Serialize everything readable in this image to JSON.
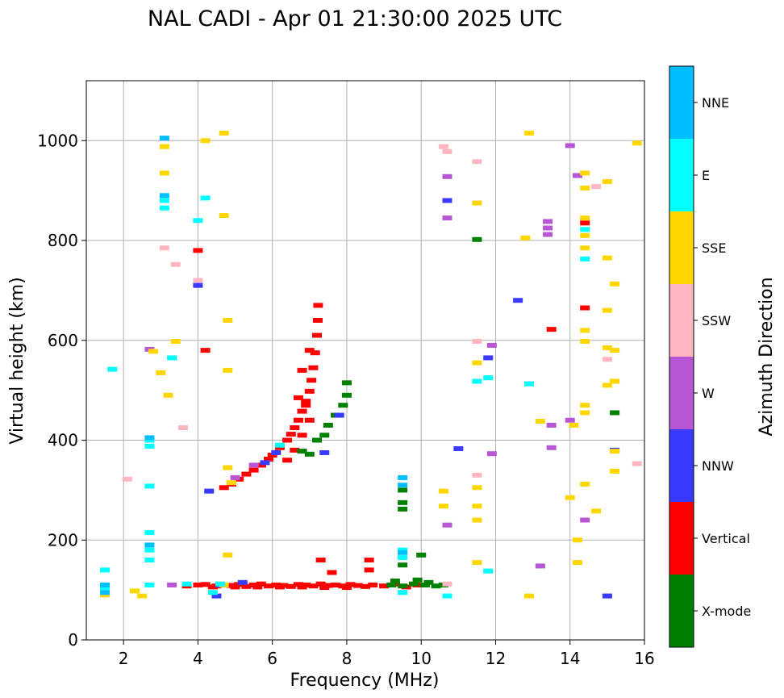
{
  "chart_data": {
    "type": "scatter",
    "title": "NAL CADI - Apr 01 21:30:00 2025 UTC",
    "xlabel": "Frequency (MHz)",
    "ylabel": "Virtual height (km)",
    "xlim": [
      1,
      16
    ],
    "ylim": [
      0,
      1120
    ],
    "xticks": [
      2,
      4,
      6,
      8,
      10,
      12,
      14,
      16
    ],
    "yticks": [
      0,
      200,
      400,
      600,
      800,
      1000
    ],
    "grid": true,
    "colorbar": {
      "label": "Azimuth Direction",
      "categories": [
        {
          "name": "X-mode",
          "color": "#008000"
        },
        {
          "name": "Vertical",
          "color": "#ff0000"
        },
        {
          "name": "NNW",
          "color": "#3a3aff"
        },
        {
          "name": "W",
          "color": "#b757d6"
        },
        {
          "name": "SSW",
          "color": "#ffb6c1"
        },
        {
          "name": "SSE",
          "color": "#ffd700"
        },
        {
          "name": "E",
          "color": "#00ffff"
        },
        {
          "name": "NNE",
          "color": "#00bfff"
        }
      ]
    },
    "series": [
      {
        "name": "Vertical",
        "points": [
          [
            4.5,
            108
          ],
          [
            4.7,
            110
          ],
          [
            4.9,
            109
          ],
          [
            5.1,
            111
          ],
          [
            5.3,
            107
          ],
          [
            5.5,
            110
          ],
          [
            5.7,
            112
          ],
          [
            5.9,
            108
          ],
          [
            6.1,
            110
          ],
          [
            6.3,
            109
          ],
          [
            6.5,
            107
          ],
          [
            6.7,
            111
          ],
          [
            6.9,
            110
          ],
          [
            7.1,
            108
          ],
          [
            7.3,
            112
          ],
          [
            7.5,
            109
          ],
          [
            7.7,
            110
          ],
          [
            7.9,
            108
          ],
          [
            8.1,
            111
          ],
          [
            8.3,
            109
          ],
          [
            8.5,
            107
          ],
          [
            8.7,
            110
          ],
          [
            9.0,
            108
          ],
          [
            9.3,
            112
          ],
          [
            9.6,
            106
          ],
          [
            9.9,
            110
          ],
          [
            3.7,
            108
          ],
          [
            4.0,
            110
          ],
          [
            4.2,
            111
          ],
          [
            4.4,
            106
          ],
          [
            5.0,
            106
          ],
          [
            5.6,
            106
          ],
          [
            6.2,
            106
          ],
          [
            6.8,
            106
          ],
          [
            7.4,
            105
          ],
          [
            8.0,
            105
          ],
          [
            7.6,
            135
          ],
          [
            8.6,
            140
          ],
          [
            8.6,
            160
          ],
          [
            7.3,
            160
          ],
          [
            4.7,
            305
          ],
          [
            4.9,
            312
          ],
          [
            5.1,
            322
          ],
          [
            5.3,
            332
          ],
          [
            5.5,
            340
          ],
          [
            5.7,
            350
          ],
          [
            5.9,
            362
          ],
          [
            6.0,
            370
          ],
          [
            6.2,
            385
          ],
          [
            6.4,
            400
          ],
          [
            6.5,
            412
          ],
          [
            6.6,
            425
          ],
          [
            6.7,
            440
          ],
          [
            6.8,
            458
          ],
          [
            6.9,
            478
          ],
          [
            7.0,
            498
          ],
          [
            7.05,
            520
          ],
          [
            7.1,
            545
          ],
          [
            7.15,
            575
          ],
          [
            7.2,
            610
          ],
          [
            7.22,
            640
          ],
          [
            7.23,
            670
          ],
          [
            6.4,
            360
          ],
          [
            6.6,
            380
          ],
          [
            6.8,
            410
          ],
          [
            7.0,
            440
          ],
          [
            6.9,
            470
          ],
          [
            6.7,
            485
          ],
          [
            6.8,
            540
          ],
          [
            7.0,
            580
          ],
          [
            4.2,
            580
          ],
          [
            4.0,
            780
          ],
          [
            13.5,
            622
          ],
          [
            14.4,
            665
          ],
          [
            14.4,
            835
          ]
        ]
      },
      {
        "name": "X-mode",
        "points": [
          [
            9.2,
            110
          ],
          [
            9.5,
            108
          ],
          [
            9.8,
            112
          ],
          [
            10.1,
            110
          ],
          [
            10.4,
            108
          ],
          [
            10.6,
            110
          ],
          [
            9.3,
            118
          ],
          [
            9.9,
            120
          ],
          [
            10.2,
            115
          ],
          [
            6.8,
            378
          ],
          [
            7.0,
            372
          ],
          [
            7.2,
            400
          ],
          [
            7.4,
            410
          ],
          [
            7.5,
            430
          ],
          [
            7.7,
            450
          ],
          [
            7.9,
            470
          ],
          [
            8.0,
            490
          ],
          [
            8.0,
            515
          ],
          [
            9.5,
            262
          ],
          [
            9.5,
            275
          ],
          [
            9.5,
            300
          ],
          [
            9.5,
            150
          ],
          [
            10.0,
            170
          ],
          [
            11.5,
            802
          ],
          [
            15.2,
            455
          ]
        ]
      },
      {
        "name": "NNW",
        "points": [
          [
            4.3,
            298
          ],
          [
            4.6,
            110
          ],
          [
            5.2,
            115
          ],
          [
            5.8,
            355
          ],
          [
            6.1,
            375
          ],
          [
            7.4,
            375
          ],
          [
            7.8,
            450
          ],
          [
            4.0,
            710
          ],
          [
            10.7,
            880
          ],
          [
            11.0,
            383
          ],
          [
            11.8,
            565
          ],
          [
            12.6,
            680
          ],
          [
            15.2,
            380
          ],
          [
            15.0,
            88
          ],
          [
            4.5,
            88
          ]
        ]
      },
      {
        "name": "W",
        "points": [
          [
            2.7,
            582
          ],
          [
            3.3,
            110
          ],
          [
            5.0,
            325
          ],
          [
            5.5,
            350
          ],
          [
            10.7,
            230
          ],
          [
            10.7,
            845
          ],
          [
            10.7,
            928
          ],
          [
            13.4,
            838
          ],
          [
            13.4,
            825
          ],
          [
            13.4,
            812
          ],
          [
            13.5,
            430
          ],
          [
            13.5,
            385
          ],
          [
            11.9,
            373
          ],
          [
            14.0,
            990
          ],
          [
            14.2,
            930
          ],
          [
            14.4,
            240
          ],
          [
            13.2,
            148
          ],
          [
            14.0,
            440
          ],
          [
            11.9,
            590
          ]
        ]
      },
      {
        "name": "SSW",
        "points": [
          [
            2.1,
            322
          ],
          [
            3.6,
            425
          ],
          [
            3.1,
            785
          ],
          [
            3.4,
            752
          ],
          [
            4.0,
            720
          ],
          [
            10.6,
            988
          ],
          [
            10.7,
            978
          ],
          [
            11.5,
            958
          ],
          [
            11.5,
            598
          ],
          [
            11.5,
            330
          ],
          [
            14.7,
            908
          ],
          [
            15.0,
            562
          ],
          [
            15.8,
            353
          ],
          [
            10.7,
            112
          ]
        ]
      },
      {
        "name": "SSE",
        "points": [
          [
            1.5,
            90
          ],
          [
            2.3,
            98
          ],
          [
            2.5,
            88
          ],
          [
            2.8,
            578
          ],
          [
            3.0,
            535
          ],
          [
            3.2,
            490
          ],
          [
            3.4,
            598
          ],
          [
            3.1,
            988
          ],
          [
            3.1,
            935
          ],
          [
            4.2,
            1000
          ],
          [
            4.7,
            1015
          ],
          [
            4.7,
            850
          ],
          [
            4.8,
            640
          ],
          [
            4.8,
            540
          ],
          [
            4.8,
            345
          ],
          [
            4.8,
            170
          ],
          [
            4.7,
            110
          ],
          [
            4.9,
            315
          ],
          [
            10.6,
            298
          ],
          [
            10.6,
            268
          ],
          [
            11.5,
            875
          ],
          [
            11.5,
            555
          ],
          [
            11.5,
            518
          ],
          [
            11.5,
            305
          ],
          [
            11.5,
            268
          ],
          [
            11.5,
            240
          ],
          [
            11.5,
            155
          ],
          [
            12.8,
            805
          ],
          [
            12.9,
            1015
          ],
          [
            12.9,
            88
          ],
          [
            13.2,
            438
          ],
          [
            14.0,
            285
          ],
          [
            14.1,
            430
          ],
          [
            14.2,
            200
          ],
          [
            14.2,
            155
          ],
          [
            14.4,
            935
          ],
          [
            14.4,
            905
          ],
          [
            14.4,
            845
          ],
          [
            14.4,
            810
          ],
          [
            14.4,
            785
          ],
          [
            14.4,
            598
          ],
          [
            14.4,
            620
          ],
          [
            14.4,
            470
          ],
          [
            14.4,
            455
          ],
          [
            14.4,
            312
          ],
          [
            14.7,
            258
          ],
          [
            15.0,
            918
          ],
          [
            15.0,
            765
          ],
          [
            15.0,
            660
          ],
          [
            15.0,
            585
          ],
          [
            15.0,
            510
          ],
          [
            15.2,
            713
          ],
          [
            15.2,
            580
          ],
          [
            15.2,
            518
          ],
          [
            15.2,
            338
          ],
          [
            15.2,
            378
          ],
          [
            15.8,
            995
          ]
        ]
      },
      {
        "name": "E",
        "points": [
          [
            1.5,
            140
          ],
          [
            1.5,
            105
          ],
          [
            1.7,
            542
          ],
          [
            2.7,
            400
          ],
          [
            2.7,
            388
          ],
          [
            2.7,
            308
          ],
          [
            2.7,
            215
          ],
          [
            2.7,
            180
          ],
          [
            2.7,
            160
          ],
          [
            2.7,
            110
          ],
          [
            3.1,
            880
          ],
          [
            3.1,
            865
          ],
          [
            3.3,
            565
          ],
          [
            3.7,
            112
          ],
          [
            4.0,
            840
          ],
          [
            4.2,
            885
          ],
          [
            4.4,
            95
          ],
          [
            4.6,
            112
          ],
          [
            6.2,
            390
          ],
          [
            9.5,
            180
          ],
          [
            9.5,
            165
          ],
          [
            9.5,
            95
          ],
          [
            10.7,
            88
          ],
          [
            11.5,
            518
          ],
          [
            11.8,
            525
          ],
          [
            11.8,
            138
          ],
          [
            12.9,
            513
          ],
          [
            14.4,
            763
          ],
          [
            14.4,
            822
          ]
        ]
      },
      {
        "name": "NNE",
        "points": [
          [
            3.1,
            1005
          ],
          [
            3.1,
            890
          ],
          [
            2.7,
            405
          ],
          [
            2.7,
            190
          ],
          [
            9.5,
            325
          ],
          [
            9.5,
            310
          ],
          [
            9.5,
            175
          ],
          [
            1.5,
            110
          ],
          [
            1.5,
            95
          ]
        ]
      }
    ]
  }
}
